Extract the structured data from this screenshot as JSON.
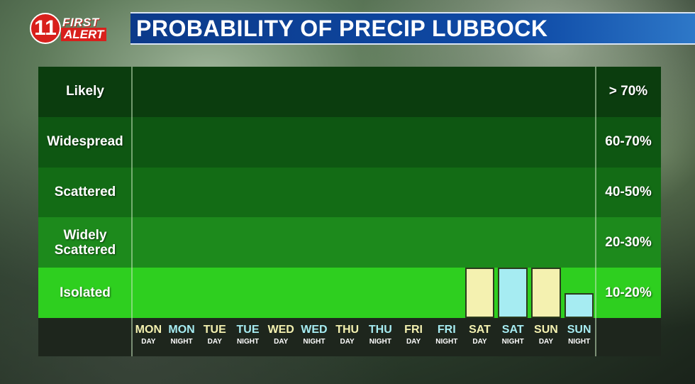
{
  "logo": {
    "number": "11",
    "line1": "FIRST",
    "line2": "ALERT"
  },
  "title": "PROBABILITY OF PRECIP LUBBOCK",
  "colors": {
    "band_likely": "#0b3d0e",
    "band_widespread": "#0e5712",
    "band_scattered": "#136c15",
    "band_widely": "#1d8a1c",
    "band_isolated": "#2ecf1f",
    "day_color": "#f4f1b0",
    "night_color": "#a6ecf2"
  },
  "chart_data": {
    "type": "bar",
    "title": "PROBABILITY OF PRECIP LUBBOCK",
    "categories": [
      {
        "top": "MON",
        "bottom": "DAY",
        "period": "day"
      },
      {
        "top": "MON",
        "bottom": "NIGHT",
        "period": "night"
      },
      {
        "top": "TUE",
        "bottom": "DAY",
        "period": "day"
      },
      {
        "top": "TUE",
        "bottom": "NIGHT",
        "period": "night"
      },
      {
        "top": "WED",
        "bottom": "DAY",
        "period": "day"
      },
      {
        "top": "WED",
        "bottom": "NIGHT",
        "period": "night"
      },
      {
        "top": "THU",
        "bottom": "DAY",
        "period": "day"
      },
      {
        "top": "THU",
        "bottom": "NIGHT",
        "period": "night"
      },
      {
        "top": "FRI",
        "bottom": "DAY",
        "period": "day"
      },
      {
        "top": "FRI",
        "bottom": "NIGHT",
        "period": "night"
      },
      {
        "top": "SAT",
        "bottom": "DAY",
        "period": "day"
      },
      {
        "top": "SAT",
        "bottom": "NIGHT",
        "period": "night"
      },
      {
        "top": "SUN",
        "bottom": "DAY",
        "period": "day"
      },
      {
        "top": "SUN",
        "bottom": "NIGHT",
        "period": "night"
      }
    ],
    "values": [
      0,
      0,
      0,
      0,
      0,
      0,
      0,
      0,
      0,
      0,
      20,
      20,
      20,
      10
    ],
    "unit": "%",
    "ylim": [
      0,
      100
    ],
    "bands": [
      {
        "label": "Likely",
        "range": "> 70%",
        "from": 80,
        "to": 100,
        "color": "#0b3d0e"
      },
      {
        "label": "Widespread",
        "range": "60-70%",
        "from": 60,
        "to": 80,
        "color": "#0e5712"
      },
      {
        "label": "Scattered",
        "range": "40-50%",
        "from": 40,
        "to": 60,
        "color": "#136c15"
      },
      {
        "label": "Widely Scattered",
        "range": "20-30%",
        "from": 20,
        "to": 40,
        "color": "#1d8a1c"
      },
      {
        "label": "Isolated",
        "range": "10-20%",
        "from": 0,
        "to": 20,
        "color": "#2ecf1f"
      }
    ]
  }
}
